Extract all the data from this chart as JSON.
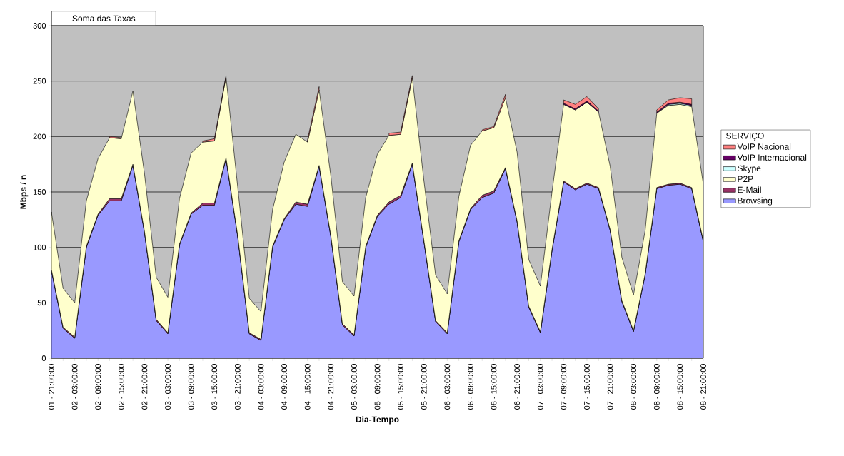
{
  "chart_data": {
    "type": "area",
    "stacked": true,
    "xlabel": "Dia-Tempo",
    "ylabel": "Mbps / n",
    "legend_title": "SERVIÇO",
    "legend": "right",
    "grid": "y",
    "annotations": [
      "Soma das Taxas"
    ],
    "ylim": [
      0,
      300
    ],
    "yticks": [
      0,
      50,
      100,
      150,
      200,
      250,
      300
    ],
    "categories": [
      "01 - 21:00:00",
      null,
      "02 - 03:00:00",
      null,
      "02 - 09:00:00",
      null,
      "02 - 15:00:00",
      null,
      "02 - 21:00:00",
      null,
      "03 - 03:00:00",
      null,
      "03 - 09:00:00",
      null,
      "03 - 15:00:00",
      null,
      "03 - 21:00:00",
      null,
      "04 - 03:00:00",
      null,
      "04 - 09:00:00",
      null,
      "04 - 15:00:00",
      null,
      "04 - 21:00:00",
      null,
      "05 - 03:00:00",
      null,
      "05 - 09:00:00",
      null,
      "05 - 15:00:00",
      null,
      "05 - 21:00:00",
      null,
      "06 - 03:00:00",
      null,
      "06 - 09:00:00",
      null,
      "06 - 15:00:00",
      null,
      "06 - 21:00:00",
      null,
      "07 - 03:00:00",
      null,
      "07 - 09:00:00",
      null,
      "07 - 15:00:00",
      null,
      "07 - 21:00:00",
      null,
      "08 - 03:00:00",
      null,
      "08 - 09:00:00",
      null,
      "08 - 15:00:00",
      null,
      "08 - 21:00:00"
    ],
    "series": [
      {
        "name": "Browsing",
        "color": "#9999ff",
        "values": [
          79,
          27,
          18,
          100,
          129,
          142,
          142,
          174,
          113,
          34,
          22,
          102,
          130,
          138,
          138,
          180,
          110,
          22,
          16,
          100,
          125,
          139,
          137,
          173,
          110,
          30,
          20,
          100,
          128,
          139,
          145,
          175,
          105,
          33,
          22,
          105,
          134,
          145,
          149,
          171,
          123,
          46,
          23,
          97,
          159,
          152,
          157,
          153,
          115,
          51,
          24,
          75,
          153,
          156,
          157,
          153,
          105
        ]
      },
      {
        "name": "E-Mail",
        "color": "#993366",
        "values": [
          1,
          1,
          1,
          1,
          1,
          2,
          2,
          1,
          1,
          1,
          1,
          1,
          1,
          2,
          2,
          1,
          1,
          1,
          1,
          1,
          1,
          2,
          2,
          1,
          1,
          1,
          1,
          1,
          1,
          2,
          2,
          1,
          1,
          1,
          1,
          1,
          1,
          2,
          2,
          1,
          1,
          1,
          1,
          1,
          1,
          1,
          1,
          1,
          1,
          1,
          1,
          1,
          1,
          1,
          1,
          1,
          1
        ]
      },
      {
        "name": "P2P",
        "color": "#ffffcc",
        "values": [
          52,
          35,
          31,
          41,
          50,
          55,
          54,
          66,
          52,
          38,
          32,
          41,
          54,
          55,
          56,
          73,
          44,
          31,
          25,
          33,
          51,
          61,
          56,
          68,
          54,
          38,
          35,
          44,
          55,
          60,
          55,
          77,
          54,
          41,
          35,
          40,
          57,
          58,
          57,
          63,
          62,
          42,
          41,
          52,
          69,
          71,
          73,
          68,
          57,
          39,
          32,
          39,
          67,
          71,
          71,
          73,
          51
        ]
      },
      {
        "name": "Skype",
        "color": "#ccffff",
        "values": [
          null,
          null,
          null,
          null,
          null,
          null,
          null,
          null,
          null,
          null,
          null,
          null,
          null,
          null,
          null,
          null,
          null,
          null,
          null,
          null,
          null,
          null,
          null,
          null,
          null,
          null,
          null,
          null,
          null,
          null,
          null,
          null,
          null,
          null,
          null,
          null,
          null,
          null,
          null,
          null,
          null,
          null,
          null,
          null,
          null,
          null,
          null,
          null,
          null,
          null,
          null,
          null,
          null,
          1,
          1,
          1,
          null
        ]
      },
      {
        "name": "VoIP Internacional",
        "color": "#660066",
        "values": [
          null,
          null,
          null,
          null,
          null,
          null,
          null,
          null,
          null,
          null,
          null,
          null,
          null,
          null,
          null,
          null,
          null,
          null,
          null,
          null,
          null,
          null,
          null,
          null,
          null,
          null,
          null,
          null,
          null,
          null,
          null,
          null,
          null,
          null,
          null,
          null,
          null,
          null,
          null,
          null,
          null,
          null,
          null,
          null,
          1,
          1,
          1,
          1,
          null,
          null,
          null,
          null,
          1,
          1,
          1,
          1,
          null
        ]
      },
      {
        "name": "VoIP Nacional",
        "color": "#ff8080",
        "values": [
          null,
          null,
          null,
          null,
          null,
          1,
          1,
          null,
          null,
          null,
          null,
          null,
          null,
          1,
          2,
          1,
          null,
          null,
          null,
          null,
          null,
          null,
          2,
          3,
          null,
          null,
          null,
          null,
          null,
          2,
          2,
          2,
          null,
          null,
          null,
          null,
          null,
          1,
          1,
          3,
          null,
          null,
          null,
          null,
          3,
          4,
          4,
          2,
          null,
          null,
          null,
          null,
          2,
          3,
          4,
          5,
          null
        ]
      }
    ]
  }
}
